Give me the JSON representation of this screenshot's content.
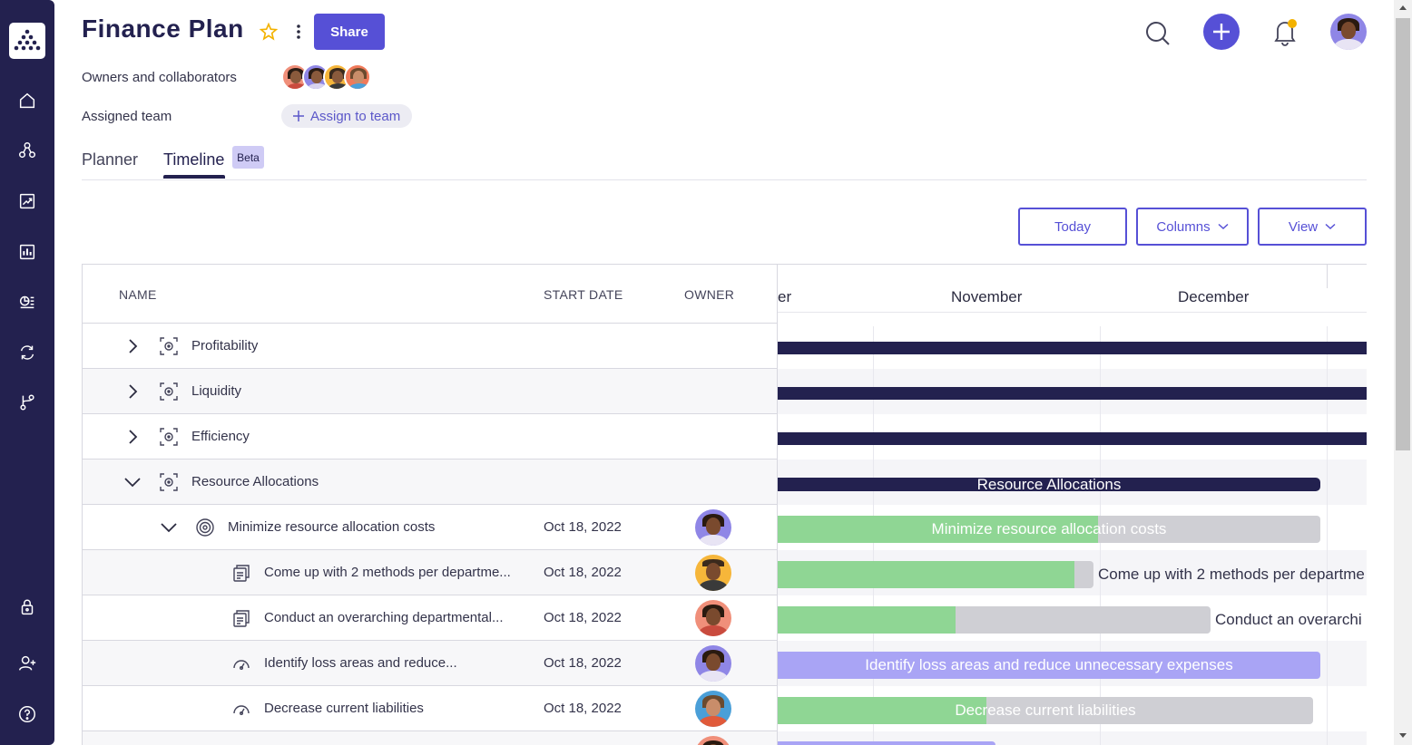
{
  "header": {
    "title": "Finance Plan",
    "share_label": "Share",
    "owners_label": "Owners and collaborators",
    "team_label": "Assigned team",
    "assign_label": "Assign to team"
  },
  "tabs": [
    {
      "label": "Planner",
      "active": false
    },
    {
      "label": "Timeline",
      "active": true,
      "badge": "Beta"
    }
  ],
  "toolbar": {
    "today_label": "Today",
    "columns_label": "Columns",
    "view_label": "View"
  },
  "table": {
    "columns": [
      "NAME",
      "START DATE",
      "OWNER"
    ],
    "rows": [
      {
        "name": "Profitability",
        "start_date": "",
        "expand": "collapsed",
        "icon": "objective-icon"
      },
      {
        "name": "Liquidity",
        "start_date": "",
        "expand": "collapsed",
        "icon": "objective-icon"
      },
      {
        "name": "Efficiency",
        "start_date": "",
        "expand": "collapsed",
        "icon": "objective-icon"
      },
      {
        "name": "Resource Allocations",
        "start_date": "",
        "expand": "expanded",
        "icon": "objective-icon"
      },
      {
        "name": "Minimize resource allocation costs",
        "start_date": "Oct 18, 2022",
        "expand": "expanded",
        "icon": "target-icon"
      },
      {
        "name": "Come up with 2 methods per departme...",
        "start_date": "Oct 18, 2022",
        "icon": "document-icon"
      },
      {
        "name": "Conduct an overarching departmental...",
        "start_date": "Oct 18, 2022",
        "icon": "document-icon"
      },
      {
        "name": "Identify loss areas and reduce...",
        "start_date": "Oct 18, 2022",
        "icon": "gauge-icon"
      },
      {
        "name": "Decrease current liabilities",
        "start_date": "Oct 18, 2022",
        "icon": "gauge-icon"
      }
    ]
  },
  "timeline": {
    "months": [
      "er",
      "November",
      "December"
    ],
    "bars": [
      {
        "label": "",
        "progress": 1.0
      },
      {
        "label": "",
        "progress": 1.0
      },
      {
        "label": "",
        "progress": 1.0
      },
      {
        "label": "Resource Allocations",
        "progress": 1.0
      },
      {
        "label": "Minimize resource allocation costs",
        "progress": 0.59
      },
      {
        "label": "Come up with 2 methods per departme",
        "progress": 0.94
      },
      {
        "label": "Conduct an overarchi",
        "progress": 0.41
      },
      {
        "label": "Identify loss areas and reduce unnecessary expenses",
        "progress": 0
      },
      {
        "label": "Decrease current liabilities",
        "progress": 0.39
      }
    ]
  },
  "colors": {
    "nav_bg": "#23214f",
    "accent": "#5650d6",
    "bar_dark": "#23214f",
    "bar_progress": "#8fd694",
    "bar_remaining": "#cfcfd4",
    "bar_lavender": "#a9a4f5",
    "notification": "#f3b200"
  }
}
